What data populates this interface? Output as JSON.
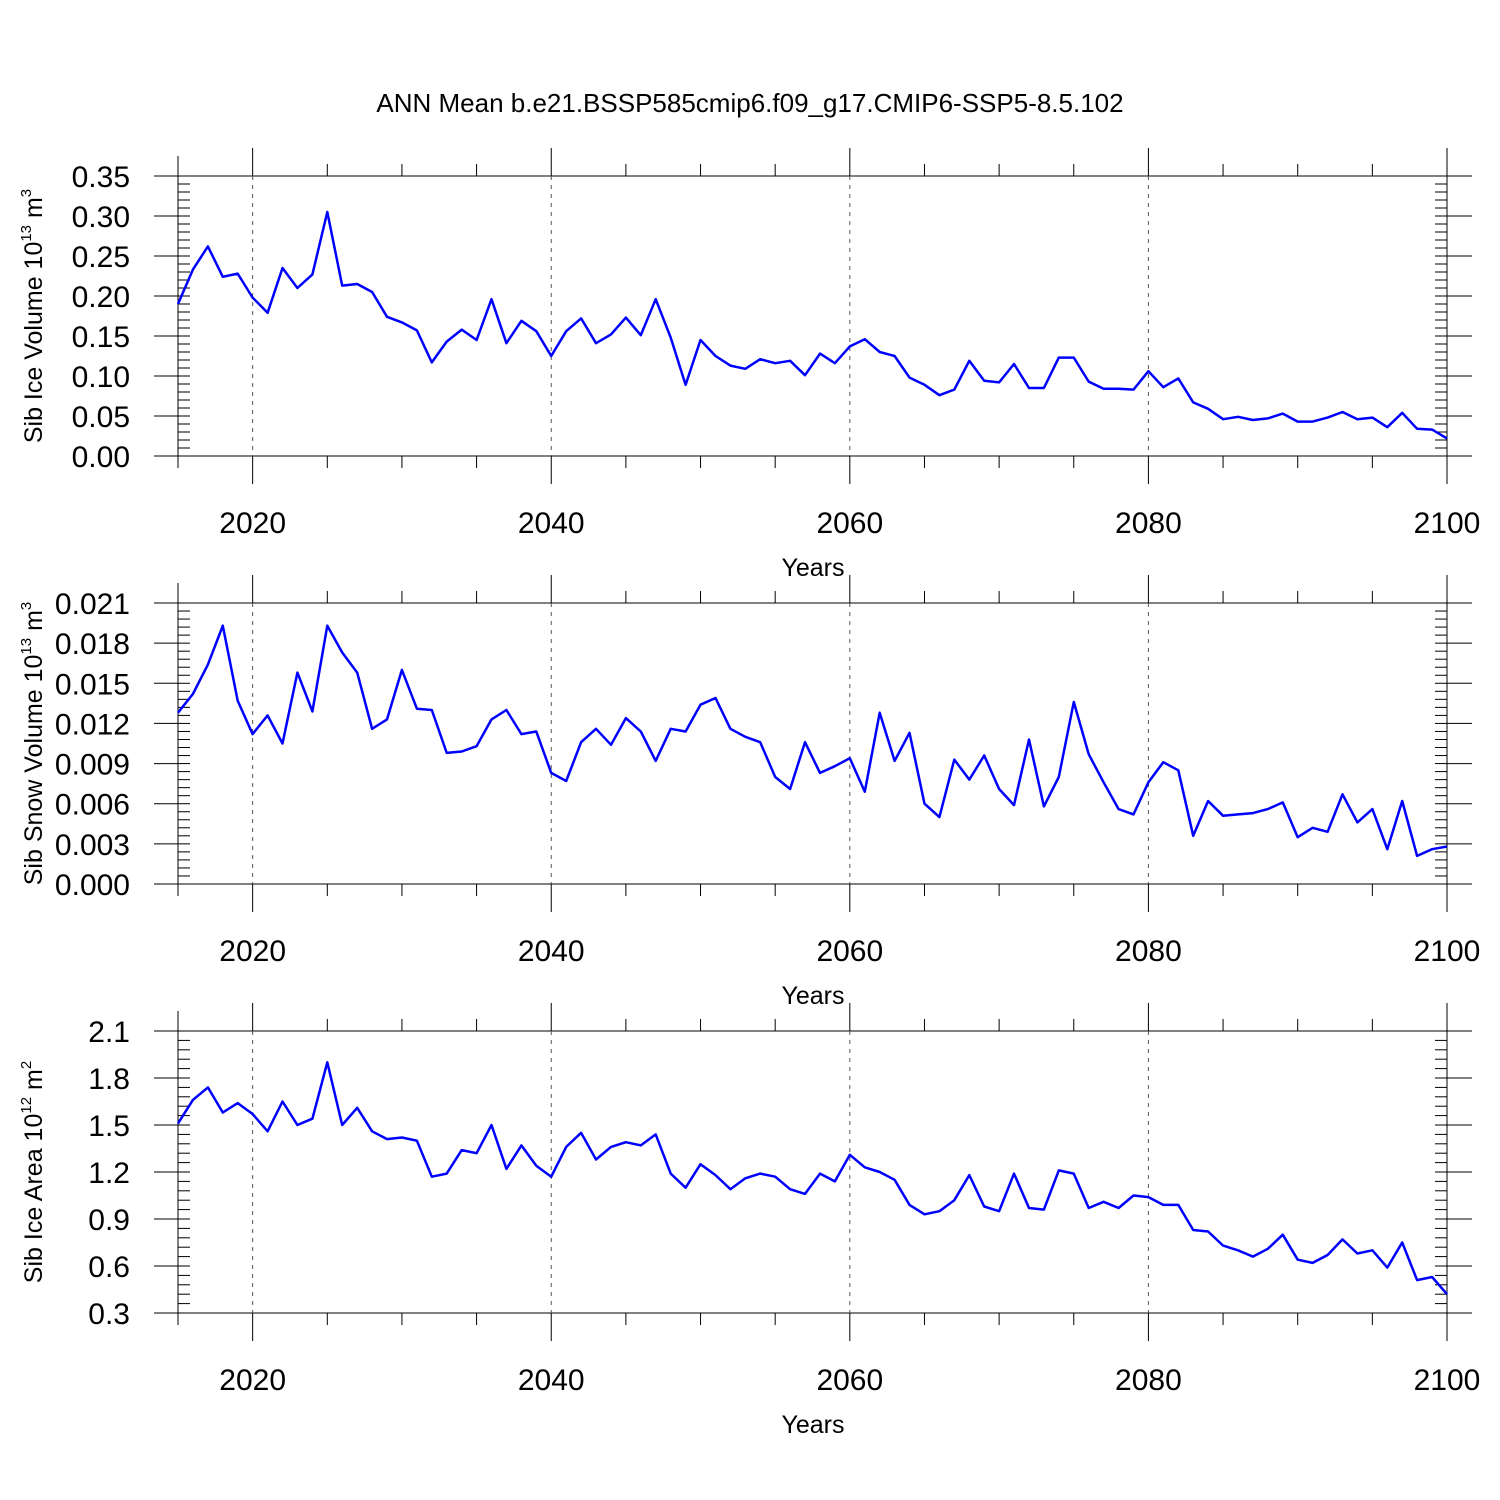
{
  "figure": {
    "title": "ANN Mean b.e21.BSSP585cmip6.f09_g17.CMIP6-SSP5-8.5.102",
    "line_color": "#0000ff",
    "grid_color": "#555555"
  },
  "chart_data": [
    {
      "type": "line",
      "title": "",
      "xlabel": "Years",
      "ylabel": {
        "base": "Sib Ice Volume 10",
        "exp": "13",
        "unit": " m",
        "unit_exp": "3"
      },
      "xlim": [
        2015,
        2100
      ],
      "ylim": [
        0.0,
        0.35
      ],
      "x_ticks": [
        2020,
        2040,
        2060,
        2080,
        2100
      ],
      "x_tick_labels": [
        "2020",
        "2040",
        "2060",
        "2080",
        "2100"
      ],
      "y_ticks": [
        0.0,
        0.05,
        0.1,
        0.15,
        0.2,
        0.25,
        0.3,
        0.35
      ],
      "y_tick_labels": [
        "0.00",
        "0.05",
        "0.10",
        "0.15",
        "0.20",
        "0.25",
        "0.30",
        "0.35"
      ],
      "y_minor_step": 0.01,
      "x_minor_step": 5,
      "grid": "vertical dashed at major x ticks",
      "x_start": 2015,
      "values": [
        0.19,
        0.233,
        0.262,
        0.224,
        0.228,
        0.198,
        0.179,
        0.235,
        0.21,
        0.227,
        0.305,
        0.213,
        0.215,
        0.205,
        0.174,
        0.167,
        0.157,
        0.117,
        0.143,
        0.158,
        0.145,
        0.196,
        0.141,
        0.169,
        0.156,
        0.125,
        0.156,
        0.172,
        0.141,
        0.152,
        0.173,
        0.151,
        0.196,
        0.148,
        0.089,
        0.145,
        0.125,
        0.113,
        0.109,
        0.121,
        0.116,
        0.119,
        0.101,
        0.128,
        0.116,
        0.137,
        0.146,
        0.13,
        0.125,
        0.098,
        0.089,
        0.076,
        0.083,
        0.119,
        0.094,
        0.092,
        0.115,
        0.085,
        0.085,
        0.123,
        0.123,
        0.093,
        0.084,
        0.084,
        0.083,
        0.106,
        0.086,
        0.097,
        0.067,
        0.059,
        0.046,
        0.049,
        0.045,
        0.047,
        0.053,
        0.043,
        0.043,
        0.048,
        0.055,
        0.046,
        0.048,
        0.036,
        0.054,
        0.034,
        0.033,
        0.022
      ]
    },
    {
      "type": "line",
      "title": "",
      "xlabel": "Years",
      "ylabel": {
        "base": "Sib Snow Volume 10",
        "exp": "13",
        "unit": " m",
        "unit_exp": "3"
      },
      "xlim": [
        2015,
        2100
      ],
      "ylim": [
        0.0,
        0.021
      ],
      "x_ticks": [
        2020,
        2040,
        2060,
        2080,
        2100
      ],
      "x_tick_labels": [
        "2020",
        "2040",
        "2060",
        "2080",
        "2100"
      ],
      "y_ticks": [
        0.0,
        0.003,
        0.006,
        0.009,
        0.012,
        0.015,
        0.018,
        0.021
      ],
      "y_tick_labels": [
        "0.000",
        "0.003",
        "0.006",
        "0.009",
        "0.012",
        "0.015",
        "0.018",
        "0.021"
      ],
      "y_minor_step": 0.0006,
      "x_minor_step": 5,
      "grid": "vertical dashed at major x ticks",
      "x_start": 2015,
      "values": [
        0.0128,
        0.0142,
        0.0164,
        0.0193,
        0.0137,
        0.0112,
        0.0126,
        0.0105,
        0.0158,
        0.0129,
        0.0193,
        0.0173,
        0.0158,
        0.0116,
        0.0123,
        0.016,
        0.0131,
        0.013,
        0.0098,
        0.0099,
        0.0103,
        0.0123,
        0.013,
        0.0112,
        0.0114,
        0.0083,
        0.0077,
        0.0106,
        0.0116,
        0.0104,
        0.0124,
        0.0114,
        0.0092,
        0.0116,
        0.0114,
        0.0134,
        0.0139,
        0.0116,
        0.011,
        0.0106,
        0.008,
        0.0071,
        0.0106,
        0.0083,
        0.0088,
        0.0094,
        0.0069,
        0.0128,
        0.0092,
        0.0113,
        0.006,
        0.005,
        0.0093,
        0.0078,
        0.0096,
        0.0071,
        0.0059,
        0.0108,
        0.0058,
        0.008,
        0.0136,
        0.0097,
        0.0076,
        0.0056,
        0.0052,
        0.0076,
        0.0091,
        0.0085,
        0.0036,
        0.0062,
        0.0051,
        0.0052,
        0.0053,
        0.0056,
        0.0061,
        0.0035,
        0.0042,
        0.0039,
        0.0067,
        0.0046,
        0.0056,
        0.0026,
        0.0062,
        0.0021,
        0.0026,
        0.0028
      ]
    },
    {
      "type": "line",
      "title": "",
      "xlabel": "Years",
      "ylabel": {
        "base": "Sib Ice Area 10",
        "exp": "12",
        "unit": " m",
        "unit_exp": "2"
      },
      "xlim": [
        2015,
        2100
      ],
      "ylim": [
        0.3,
        2.1
      ],
      "x_ticks": [
        2020,
        2040,
        2060,
        2080,
        2100
      ],
      "x_tick_labels": [
        "2020",
        "2040",
        "2060",
        "2080",
        "2100"
      ],
      "y_ticks": [
        0.3,
        0.6,
        0.9,
        1.2,
        1.5,
        1.8,
        2.1
      ],
      "y_tick_labels": [
        "0.3",
        "0.6",
        "0.9",
        "1.2",
        "1.5",
        "1.8",
        "2.1"
      ],
      "y_minor_step": 0.06,
      "x_minor_step": 5,
      "grid": "vertical dashed at major x ticks",
      "x_start": 2015,
      "values": [
        1.51,
        1.66,
        1.74,
        1.58,
        1.64,
        1.57,
        1.46,
        1.65,
        1.5,
        1.54,
        1.9,
        1.5,
        1.61,
        1.46,
        1.41,
        1.42,
        1.4,
        1.17,
        1.19,
        1.34,
        1.32,
        1.5,
        1.22,
        1.37,
        1.24,
        1.17,
        1.36,
        1.45,
        1.28,
        1.36,
        1.39,
        1.37,
        1.44,
        1.19,
        1.1,
        1.25,
        1.18,
        1.09,
        1.16,
        1.19,
        1.17,
        1.09,
        1.06,
        1.19,
        1.14,
        1.31,
        1.23,
        1.2,
        1.15,
        0.99,
        0.93,
        0.95,
        1.02,
        1.18,
        0.98,
        0.95,
        1.19,
        0.97,
        0.96,
        1.21,
        1.19,
        0.97,
        1.01,
        0.97,
        1.05,
        1.04,
        0.99,
        0.99,
        0.83,
        0.82,
        0.73,
        0.7,
        0.66,
        0.71,
        0.8,
        0.64,
        0.62,
        0.67,
        0.77,
        0.68,
        0.7,
        0.59,
        0.75,
        0.51,
        0.53,
        0.42
      ]
    }
  ]
}
